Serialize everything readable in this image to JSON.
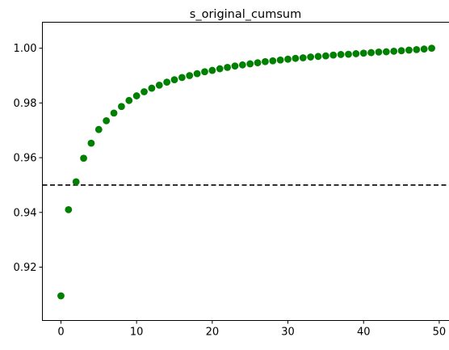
{
  "chart_data": {
    "type": "scatter",
    "title": "s_original_cumsum",
    "xlabel": "",
    "ylabel": "",
    "xlim": [
      -2.45,
      51.45
    ],
    "ylim": [
      0.9005,
      1.0095
    ],
    "x_ticks": [
      0,
      10,
      20,
      30,
      40,
      50
    ],
    "y_ticks": [
      0.92,
      0.94,
      0.96,
      0.98,
      1.0
    ],
    "y_tick_labels": [
      "0.92",
      "0.94",
      "0.96",
      "0.98",
      "1.00"
    ],
    "grid": false,
    "marker_color": "#008000",
    "threshold": {
      "y": 0.95,
      "style": "dashed",
      "color": "#000000"
    },
    "series": [
      {
        "x": [
          0,
          1,
          2,
          3,
          4,
          5,
          6,
          7,
          8,
          9,
          10,
          11,
          12,
          13,
          14,
          15,
          16,
          17,
          18,
          19,
          20,
          21,
          22,
          23,
          24,
          25,
          26,
          27,
          28,
          29,
          30,
          31,
          32,
          33,
          34,
          35,
          36,
          37,
          38,
          39,
          40,
          41,
          42,
          43,
          44,
          45,
          46,
          47,
          48,
          49
        ],
        "values": [
          0.9095,
          0.941,
          0.9512,
          0.9598,
          0.9653,
          0.9703,
          0.9735,
          0.9763,
          0.9787,
          0.9809,
          0.9826,
          0.9841,
          0.9854,
          0.9865,
          0.9876,
          0.9885,
          0.9893,
          0.99,
          0.9907,
          0.9914,
          0.9919,
          0.9925,
          0.993,
          0.9935,
          0.9939,
          0.9943,
          0.9947,
          0.9951,
          0.9954,
          0.9957,
          0.996,
          0.9963,
          0.9965,
          0.9968,
          0.997,
          0.9972,
          0.9975,
          0.9977,
          0.9978,
          0.998,
          0.9982,
          0.9984,
          0.9986,
          0.9987,
          0.9989,
          0.9991,
          0.9993,
          0.9995,
          0.9997,
          1.0
        ]
      }
    ]
  }
}
